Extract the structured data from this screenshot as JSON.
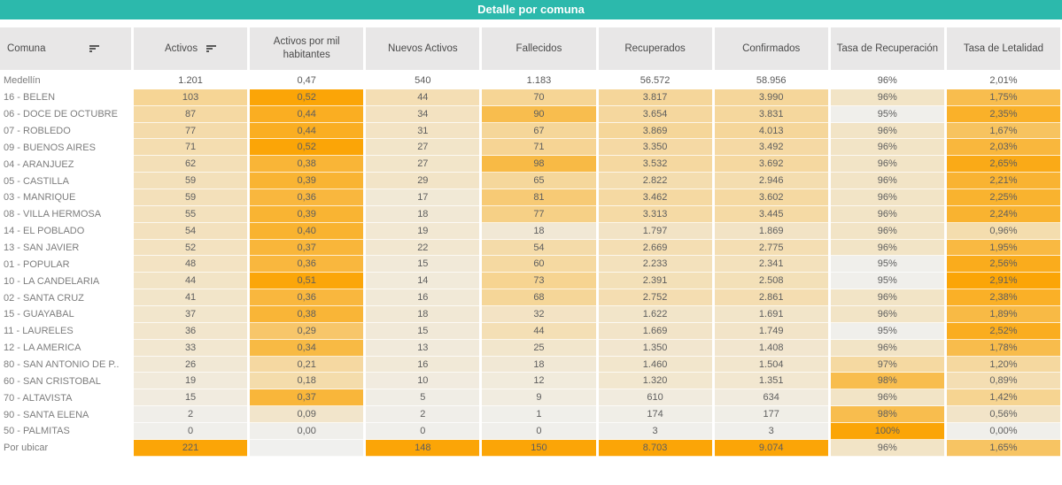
{
  "colors": {
    "title_bg": "#2cb9ac",
    "title_text": "#ffffff",
    "header_bg": "#e8e7e7",
    "header_text": "#4a4a4a",
    "label_text": "#7d7d7d",
    "value_text": "#5e5e5e",
    "blank_cell": "#f0f0ee",
    "heat_ramp": [
      {
        "t": 0,
        "color": "#f0efeb"
      },
      {
        "t": 0.5,
        "color": "#f6d38f"
      },
      {
        "t": 0.6,
        "color": "#f8bd4e"
      },
      {
        "t": 1,
        "color": "#fba507"
      }
    ]
  },
  "chart_data": {
    "type": "heatmap_table",
    "title": "Detalle por comuna",
    "layout_note": "first column is row labels; remaining 8 columns are independently color-scaled heatmap cells (light warm gray to orange, per-column min/max); Medellín summary row has no fill",
    "columns": [
      {
        "key": "comuna",
        "label": "Comuna",
        "sort_icon": true
      },
      {
        "key": "activos",
        "label": "Activos",
        "sort_icon": true
      },
      {
        "key": "activos_por_mil",
        "label": "Activos por mil habitantes",
        "sort_icon": false
      },
      {
        "key": "nuevos_activos",
        "label": "Nuevos Activos",
        "sort_icon": false
      },
      {
        "key": "fallecidos",
        "label": "Fallecidos",
        "sort_icon": false
      },
      {
        "key": "recuperados",
        "label": "Recuperados",
        "sort_icon": false
      },
      {
        "key": "confirmados",
        "label": "Confirmados",
        "sort_icon": false
      },
      {
        "key": "tasa_recuperacion",
        "label": "Tasa de Recuperación",
        "sort_icon": false
      },
      {
        "key": "tasa_letalidad",
        "label": "Tasa de Letalidad",
        "sort_icon": false
      }
    ],
    "summary_row": {
      "label": "Medellín",
      "values": [
        "1.201",
        "0,47",
        "540",
        "1.183",
        "56.572",
        "58.956",
        "96%",
        "2,01%"
      ]
    },
    "rows": [
      {
        "label": "16 - BELEN",
        "values": [
          "103",
          "0,52",
          "44",
          "70",
          "3.817",
          "3.990",
          "96%",
          "1,75%"
        ]
      },
      {
        "label": "06 - DOCE DE OCTUBRE",
        "values": [
          "87",
          "0,44",
          "34",
          "90",
          "3.654",
          "3.831",
          "95%",
          "2,35%"
        ]
      },
      {
        "label": "07 - ROBLEDO",
        "values": [
          "77",
          "0,44",
          "31",
          "67",
          "3.869",
          "4.013",
          "96%",
          "1,67%"
        ]
      },
      {
        "label": "09 - BUENOS AIRES",
        "values": [
          "71",
          "0,52",
          "27",
          "71",
          "3.350",
          "3.492",
          "96%",
          "2,03%"
        ]
      },
      {
        "label": "04 - ARANJUEZ",
        "values": [
          "62",
          "0,38",
          "27",
          "98",
          "3.532",
          "3.692",
          "96%",
          "2,65%"
        ]
      },
      {
        "label": "05 - CASTILLA",
        "values": [
          "59",
          "0,39",
          "29",
          "65",
          "2.822",
          "2.946",
          "96%",
          "2,21%"
        ]
      },
      {
        "label": "03 - MANRIQUE",
        "values": [
          "59",
          "0,36",
          "17",
          "81",
          "3.462",
          "3.602",
          "96%",
          "2,25%"
        ]
      },
      {
        "label": "08 - VILLA HERMOSA",
        "values": [
          "55",
          "0,39",
          "18",
          "77",
          "3.313",
          "3.445",
          "96%",
          "2,24%"
        ]
      },
      {
        "label": "14 - EL POBLADO",
        "values": [
          "54",
          "0,40",
          "19",
          "18",
          "1.797",
          "1.869",
          "96%",
          "0,96%"
        ]
      },
      {
        "label": "13 - SAN JAVIER",
        "values": [
          "52",
          "0,37",
          "22",
          "54",
          "2.669",
          "2.775",
          "96%",
          "1,95%"
        ]
      },
      {
        "label": "01 - POPULAR",
        "values": [
          "48",
          "0,36",
          "15",
          "60",
          "2.233",
          "2.341",
          "95%",
          "2,56%"
        ]
      },
      {
        "label": "10 - LA CANDELARIA",
        "values": [
          "44",
          "0,51",
          "14",
          "73",
          "2.391",
          "2.508",
          "95%",
          "2,91%"
        ]
      },
      {
        "label": "02 - SANTA CRUZ",
        "values": [
          "41",
          "0,36",
          "16",
          "68",
          "2.752",
          "2.861",
          "96%",
          "2,38%"
        ]
      },
      {
        "label": "15 - GUAYABAL",
        "values": [
          "37",
          "0,38",
          "18",
          "32",
          "1.622",
          "1.691",
          "96%",
          "1,89%"
        ]
      },
      {
        "label": "11 - LAURELES",
        "values": [
          "36",
          "0,29",
          "15",
          "44",
          "1.669",
          "1.749",
          "95%",
          "2,52%"
        ]
      },
      {
        "label": "12 - LA AMERICA",
        "values": [
          "33",
          "0,34",
          "13",
          "25",
          "1.350",
          "1.408",
          "96%",
          "1,78%"
        ]
      },
      {
        "label": "80 - SAN ANTONIO DE P..",
        "values": [
          "26",
          "0,21",
          "16",
          "18",
          "1.460",
          "1.504",
          "97%",
          "1,20%"
        ]
      },
      {
        "label": "60 - SAN CRISTOBAL",
        "values": [
          "19",
          "0,18",
          "10",
          "12",
          "1.320",
          "1.351",
          "98%",
          "0,89%"
        ]
      },
      {
        "label": "70 - ALTAVISTA",
        "values": [
          "15",
          "0,37",
          "5",
          "9",
          "610",
          "634",
          "96%",
          "1,42%"
        ]
      },
      {
        "label": "90 - SANTA ELENA",
        "values": [
          "2",
          "0,09",
          "2",
          "1",
          "174",
          "177",
          "98%",
          "0,56%"
        ]
      },
      {
        "label": "50 - PALMITAS",
        "values": [
          "0",
          "0,00",
          "0",
          "0",
          "3",
          "3",
          "100%",
          "0,00%"
        ]
      },
      {
        "label": "Por ubicar",
        "values": [
          "221",
          "",
          "148",
          "150",
          "8.703",
          "9.074",
          "96%",
          "1,65%"
        ]
      }
    ]
  }
}
